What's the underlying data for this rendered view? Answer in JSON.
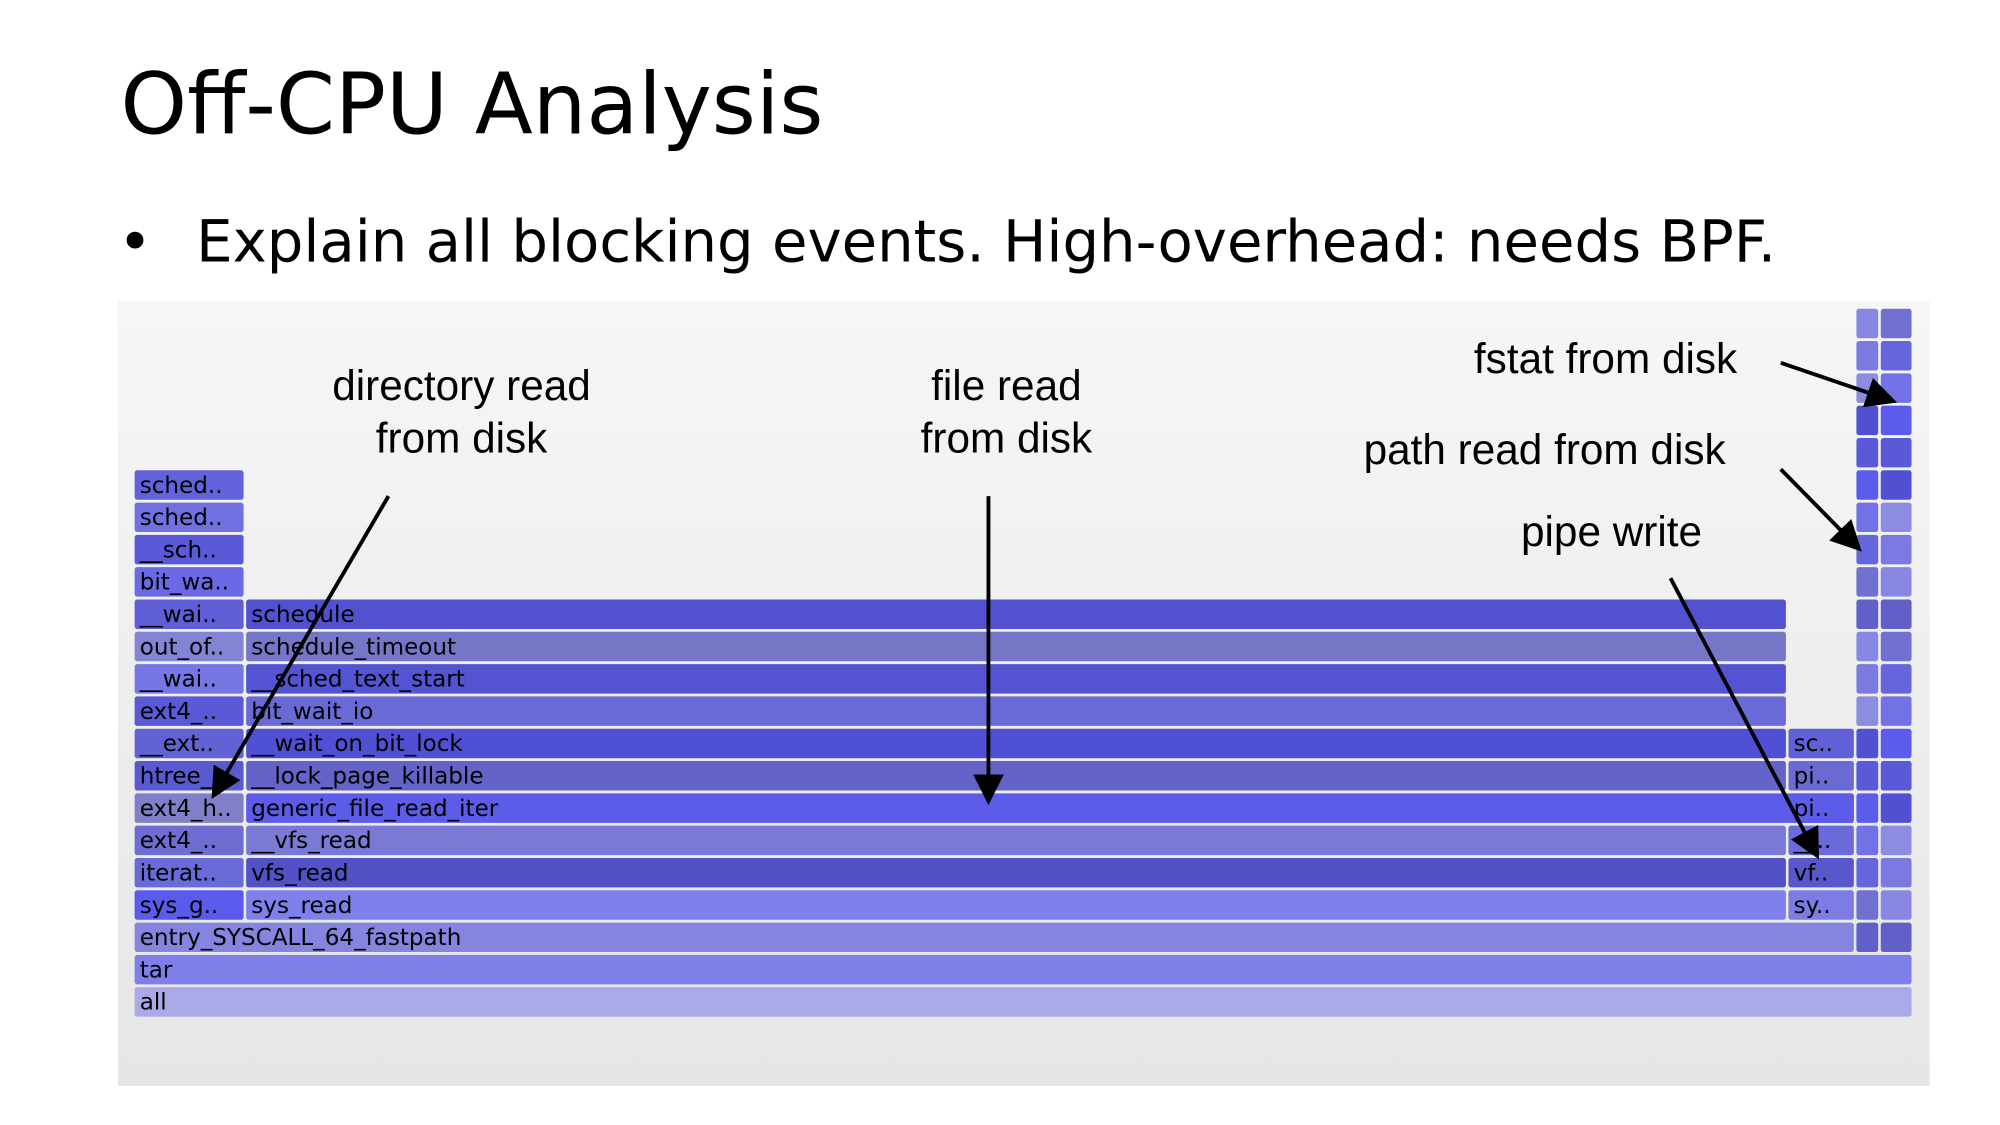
{
  "slide": {
    "title": "Off-CPU Analysis",
    "bullets": [
      "Explain all blocking events. High-overhead: needs BPF."
    ]
  },
  "flame_graph": {
    "frames": [
      {
        "label": "all"
      },
      {
        "label": "tar"
      },
      {
        "label": "entry_SYSCALL_64_fastpath"
      },
      {
        "label": "sys_g.."
      },
      {
        "label": "sys_read"
      },
      {
        "label": "sy.."
      },
      {
        "label": "iterat.."
      },
      {
        "label": "vfs_read"
      },
      {
        "label": "vf.."
      },
      {
        "label": "ext4_.."
      },
      {
        "label": "__vfs_read"
      },
      {
        "label": "__.."
      },
      {
        "label": "ext4_h.."
      },
      {
        "label": "generic_file_read_iter"
      },
      {
        "label": "pi.."
      },
      {
        "label": "htree_.."
      },
      {
        "label": "__lock_page_killable"
      },
      {
        "label": "pi.."
      },
      {
        "label": "__ext.."
      },
      {
        "label": "__wait_on_bit_lock"
      },
      {
        "label": "sc.."
      },
      {
        "label": "ext4_.."
      },
      {
        "label": "bit_wait_io"
      },
      {
        "label": "__wai.."
      },
      {
        "label": "__sched_text_start"
      },
      {
        "label": "out_of.."
      },
      {
        "label": "schedule_timeout"
      },
      {
        "label": "__wai.."
      },
      {
        "label": "schedule"
      },
      {
        "label": "bit_wa.."
      },
      {
        "label": "__sch.."
      },
      {
        "label": "sched.."
      },
      {
        "label": "sched.."
      }
    ]
  },
  "annotations": [
    {
      "lines": [
        "directory read",
        "from disk"
      ]
    },
    {
      "lines": [
        "file read",
        "from disk"
      ]
    },
    {
      "lines": [
        "fstat from disk"
      ]
    },
    {
      "lines": [
        "path read from disk"
      ]
    },
    {
      "lines": [
        "pipe write"
      ]
    }
  ]
}
